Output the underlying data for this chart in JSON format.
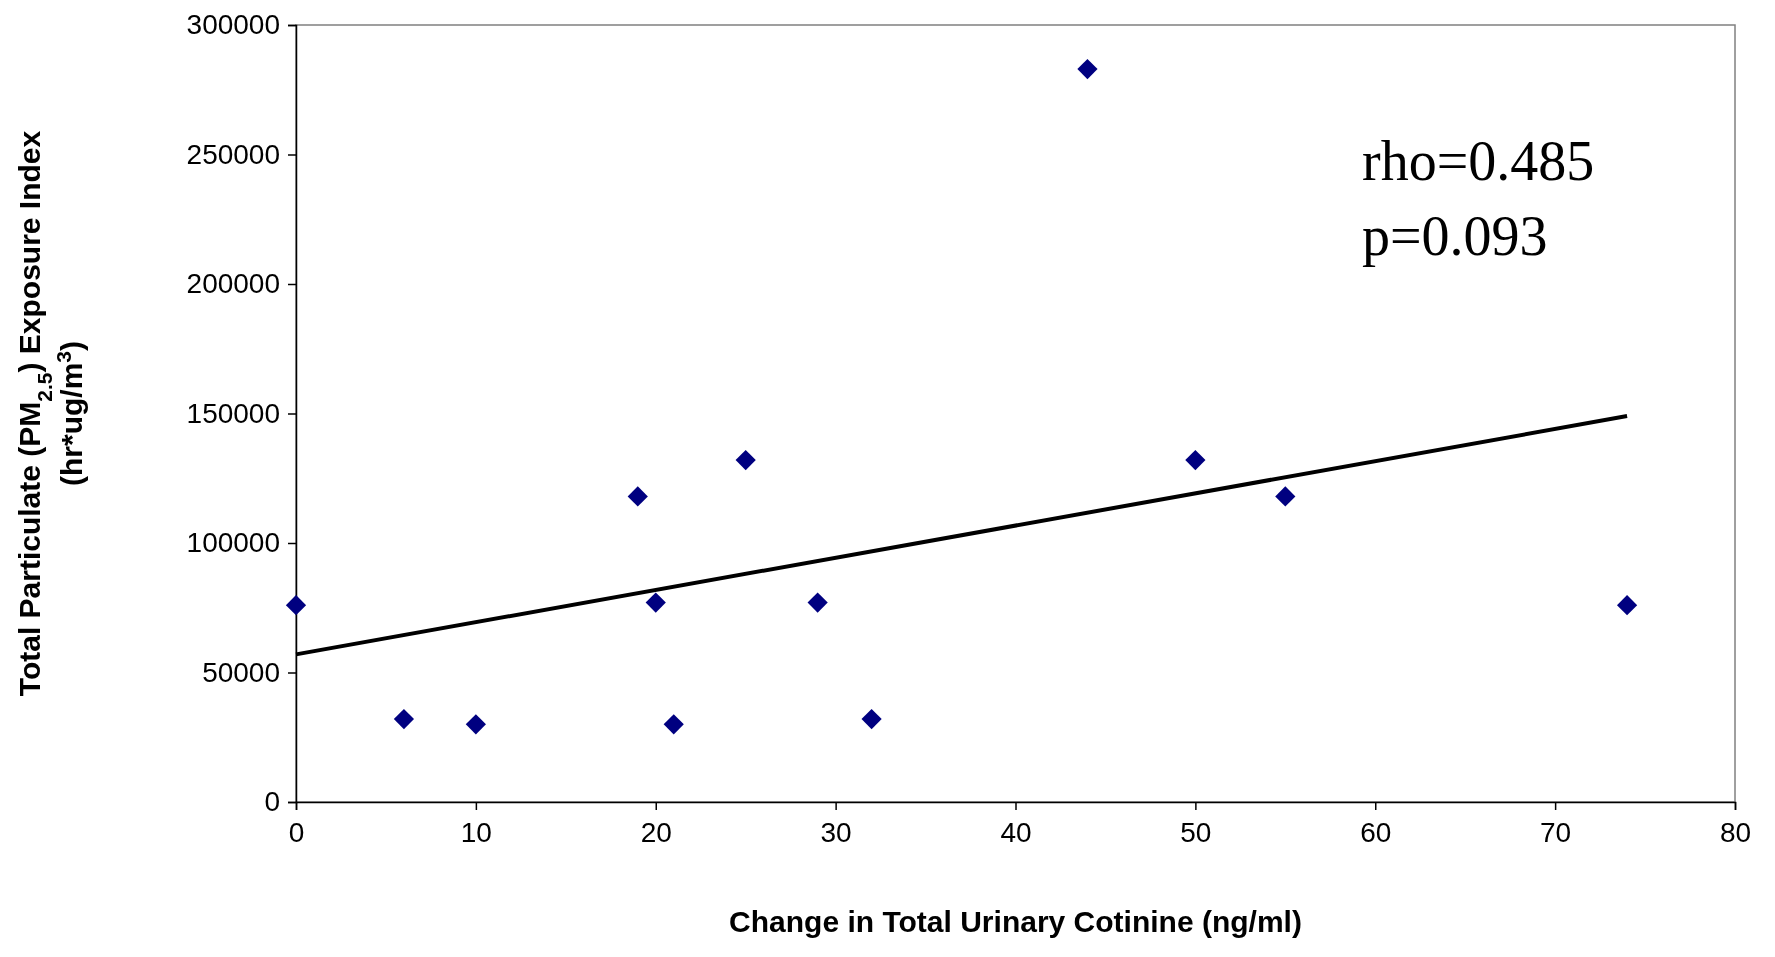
{
  "chart_data": {
    "type": "scatter",
    "xlabel": "Change in Total Urinary Cotinine (ng/ml)",
    "ylabel": "Total Particulate (PM$_{2.5}$) Exposure Index\n(hr*ug/m$^{3}$)",
    "xlim": [
      0,
      80
    ],
    "xticks": [
      0,
      10,
      20,
      30,
      40,
      50,
      60,
      70,
      80
    ],
    "ylim": [
      0,
      300000
    ],
    "yticks": [
      0,
      50000,
      100000,
      150000,
      200000,
      250000,
      300000
    ],
    "marker": "diamond",
    "series": [
      {
        "color": "#000080",
        "x": [
          0,
          6,
          10,
          19,
          20,
          21,
          25,
          29,
          32,
          44,
          50,
          55,
          74
        ],
        "values": [
          76000,
          32000,
          30000,
          118000,
          77000,
          30000,
          132000,
          77000,
          32000,
          283000,
          132000,
          118000,
          76000
        ]
      },
      {
        "type": "line",
        "color": "#000000",
        "marker": "none",
        "x": [
          0,
          74
        ],
        "values": [
          57000,
          149000
        ]
      }
    ],
    "annotations": [
      "rho=0.485",
      "p=0.093"
    ]
  }
}
